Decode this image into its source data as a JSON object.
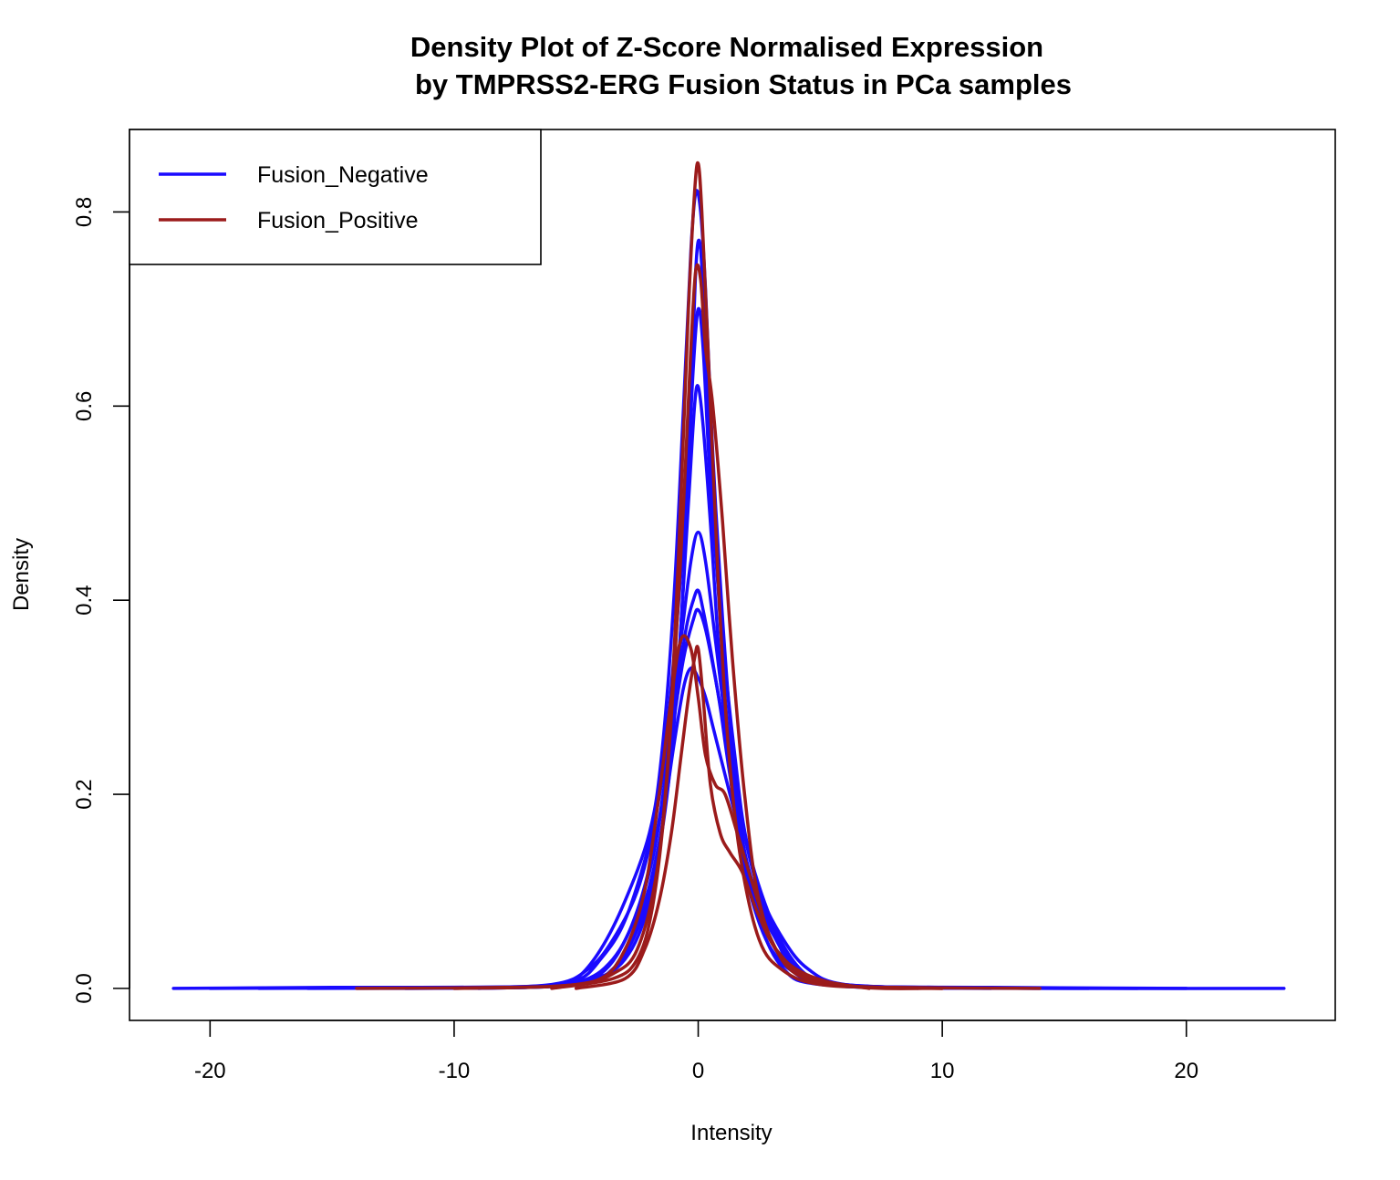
{
  "chart_data": {
    "type": "line",
    "title": "Density Plot of Z-Score Normalised Expression",
    "subtitle": "by TMPRSS2-ERG Fusion Status in PCa samples",
    "xlabel": "Intensity",
    "ylabel": "Density",
    "xlim": [
      -23.3,
      26.1
    ],
    "ylim": [
      -0.033,
      0.885
    ],
    "x_ticks": [
      -20,
      -10,
      0,
      10,
      20
    ],
    "x_tick_labels": [
      "-20",
      "-10",
      "0",
      "10",
      "20"
    ],
    "y_ticks": [
      0.0,
      0.2,
      0.4,
      0.6,
      0.8
    ],
    "y_tick_labels": [
      "0.0",
      "0.2",
      "0.4",
      "0.6",
      "0.8"
    ],
    "legend": {
      "position": "top-left",
      "entries": [
        {
          "label": "Fusion_Negative",
          "color": "#1a0aff"
        },
        {
          "label": "Fusion_Positive",
          "color": "#9b1b1b"
        }
      ]
    },
    "grid": false,
    "series": [
      {
        "group": "Fusion_Negative",
        "color": "#1a0aff",
        "x": [
          -21.5,
          -15,
          -10,
          -6,
          -5,
          -4,
          -3,
          -2,
          -1.5,
          -1,
          -0.6,
          -0.3,
          -0.1,
          0.1,
          0.3,
          0.6,
          1,
          1.5,
          2,
          3,
          4,
          5,
          7,
          10,
          15,
          24
        ],
        "y": [
          0.0,
          0.001,
          0.001,
          0.002,
          0.01,
          0.04,
          0.09,
          0.16,
          0.24,
          0.4,
          0.6,
          0.76,
          0.82,
          0.8,
          0.72,
          0.55,
          0.38,
          0.22,
          0.13,
          0.06,
          0.02,
          0.007,
          0.002,
          0.001,
          0.0,
          0.0
        ]
      },
      {
        "group": "Fusion_Negative",
        "color": "#1a0aff",
        "x": [
          -20,
          -12,
          -7,
          -5,
          -4,
          -3,
          -2,
          -1.5,
          -1,
          -0.5,
          -0.2,
          0,
          0.2,
          0.5,
          1,
          1.5,
          2,
          3,
          4,
          5,
          7,
          12,
          20
        ],
        "y": [
          0.0,
          0.001,
          0.002,
          0.008,
          0.03,
          0.07,
          0.15,
          0.22,
          0.34,
          0.5,
          0.64,
          0.7,
          0.66,
          0.52,
          0.36,
          0.24,
          0.15,
          0.07,
          0.025,
          0.008,
          0.002,
          0.001,
          0.0
        ]
      },
      {
        "group": "Fusion_Negative",
        "color": "#1a0aff",
        "x": [
          -18,
          -10,
          -6,
          -4.5,
          -3.5,
          -2.5,
          -1.8,
          -1.2,
          -0.7,
          -0.3,
          0,
          0.3,
          0.7,
          1.2,
          1.8,
          2.5,
          3.5,
          4.5,
          6,
          10,
          18
        ],
        "y": [
          0.0,
          0.001,
          0.004,
          0.02,
          0.05,
          0.1,
          0.17,
          0.26,
          0.36,
          0.44,
          0.47,
          0.44,
          0.36,
          0.26,
          0.17,
          0.1,
          0.05,
          0.02,
          0.004,
          0.001,
          0.0
        ]
      },
      {
        "group": "Fusion_Negative",
        "color": "#1a0aff",
        "x": [
          -16,
          -8,
          -5,
          -3.5,
          -2.5,
          -1.7,
          -1.1,
          -0.6,
          -0.2,
          0,
          0.3,
          0.7,
          1.2,
          1.8,
          2.6,
          3.6,
          5,
          8,
          16
        ],
        "y": [
          0.0,
          0.001,
          0.006,
          0.03,
          0.08,
          0.16,
          0.26,
          0.34,
          0.38,
          0.39,
          0.37,
          0.32,
          0.25,
          0.17,
          0.09,
          0.035,
          0.008,
          0.001,
          0.0
        ]
      },
      {
        "group": "Fusion_Negative",
        "color": "#1a0aff",
        "x": [
          -14,
          -7,
          -4.5,
          -3,
          -2,
          -1.3,
          -0.8,
          -0.4,
          -0.15,
          0,
          0.2,
          0.5,
          0.9,
          1.4,
          2,
          3,
          4.5,
          7,
          14
        ],
        "y": [
          0.0,
          0.001,
          0.008,
          0.03,
          0.09,
          0.2,
          0.34,
          0.5,
          0.6,
          0.62,
          0.58,
          0.48,
          0.33,
          0.2,
          0.11,
          0.04,
          0.01,
          0.002,
          0.0
        ]
      },
      {
        "group": "Fusion_Negative",
        "color": "#1a0aff",
        "x": [
          -12,
          -6,
          -4,
          -2.8,
          -1.9,
          -1.3,
          -0.9,
          -0.5,
          -0.2,
          0,
          0.2,
          0.5,
          0.9,
          1.3,
          1.9,
          2.8,
          4,
          6,
          12
        ],
        "y": [
          0.0,
          0.002,
          0.015,
          0.06,
          0.13,
          0.22,
          0.3,
          0.37,
          0.4,
          0.41,
          0.39,
          0.35,
          0.29,
          0.22,
          0.14,
          0.06,
          0.015,
          0.002,
          0.0
        ]
      },
      {
        "group": "Fusion_Negative",
        "color": "#1a0aff",
        "x": [
          -10,
          -5,
          -3.5,
          -2.5,
          -1.7,
          -1.1,
          -0.6,
          -0.3,
          -0.1,
          0.05,
          0.2,
          0.4,
          0.8,
          1.2,
          1.8,
          2.5,
          3.5,
          5,
          10
        ],
        "y": [
          0.0,
          0.004,
          0.02,
          0.06,
          0.13,
          0.24,
          0.42,
          0.6,
          0.74,
          0.77,
          0.72,
          0.6,
          0.42,
          0.27,
          0.15,
          0.07,
          0.02,
          0.004,
          0.0
        ]
      },
      {
        "group": "Fusion_Negative",
        "color": "#1a0aff",
        "x": [
          -9,
          -4.5,
          -3.2,
          -2.3,
          -1.6,
          -1,
          -0.6,
          -0.3,
          0,
          0.3,
          0.6,
          1,
          1.6,
          2.3,
          3.2,
          4.5,
          9
        ],
        "y": [
          0.0,
          0.006,
          0.03,
          0.08,
          0.15,
          0.25,
          0.31,
          0.33,
          0.32,
          0.3,
          0.27,
          0.23,
          0.17,
          0.1,
          0.05,
          0.01,
          0.0
        ]
      },
      {
        "group": "Fusion_Positive",
        "color": "#9b1b1b",
        "x": [
          -14,
          -8,
          -5,
          -3.5,
          -2.5,
          -1.7,
          -1.2,
          -0.8,
          -0.4,
          -0.15,
          0,
          0.15,
          0.4,
          0.8,
          1.2,
          1.7,
          2.5,
          3.5,
          5,
          8,
          14
        ],
        "y": [
          0.0,
          0.001,
          0.004,
          0.015,
          0.04,
          0.12,
          0.25,
          0.45,
          0.7,
          0.82,
          0.85,
          0.8,
          0.66,
          0.43,
          0.26,
          0.14,
          0.05,
          0.018,
          0.004,
          0.001,
          0.0
        ]
      },
      {
        "group": "Fusion_Positive",
        "color": "#9b1b1b",
        "x": [
          -10,
          -6,
          -4,
          -3,
          -2.2,
          -1.6,
          -1.1,
          -0.7,
          -0.3,
          0,
          0.3,
          0.7,
          1.1,
          1.6,
          2.2,
          3,
          4,
          6,
          10
        ],
        "y": [
          0.0,
          0.002,
          0.01,
          0.04,
          0.1,
          0.2,
          0.3,
          0.36,
          0.35,
          0.3,
          0.24,
          0.21,
          0.2,
          0.16,
          0.11,
          0.05,
          0.015,
          0.003,
          0.0
        ]
      },
      {
        "group": "Fusion_Positive",
        "color": "#9b1b1b",
        "x": [
          -6,
          -3.5,
          -2.5,
          -1.9,
          -1.4,
          -1,
          -0.6,
          -0.3,
          -0.1,
          0.1,
          0.3,
          0.6,
          1,
          1.4,
          1.9,
          2.5,
          3.5,
          6,
          10
        ],
        "y": [
          0.0,
          0.01,
          0.03,
          0.08,
          0.18,
          0.32,
          0.5,
          0.66,
          0.74,
          0.73,
          0.66,
          0.6,
          0.48,
          0.34,
          0.2,
          0.09,
          0.03,
          0.003,
          0.0
        ]
      },
      {
        "group": "Fusion_Positive",
        "color": "#9b1b1b",
        "x": [
          -5,
          -3,
          -2.2,
          -1.6,
          -1.1,
          -0.7,
          -0.4,
          -0.15,
          0,
          0.2,
          0.5,
          0.9,
          1.3,
          1.8,
          2.4,
          3.2,
          4.5,
          7
        ],
        "y": [
          0.0,
          0.01,
          0.04,
          0.09,
          0.16,
          0.24,
          0.3,
          0.34,
          0.35,
          0.3,
          0.21,
          0.16,
          0.14,
          0.12,
          0.08,
          0.04,
          0.012,
          0.0
        ]
      }
    ]
  }
}
